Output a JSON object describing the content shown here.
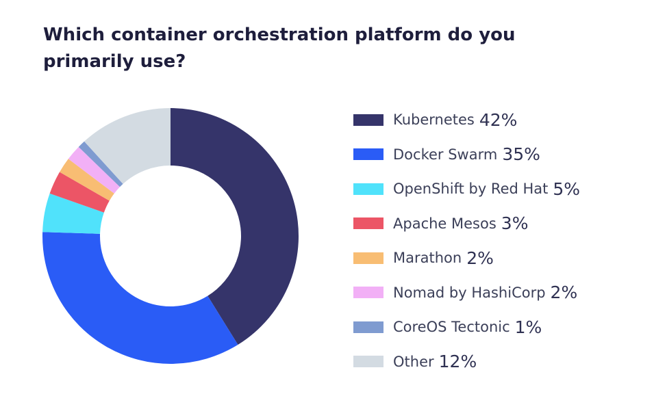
{
  "chart_data": {
    "type": "pie",
    "title": "Which container orchestration platform do you primarily use?",
    "donut": true,
    "start_angle": 180,
    "direction": "clockwise",
    "legend_position": "right",
    "series": [
      {
        "name": "Kubernetes",
        "value": 42,
        "label": "42%",
        "color": "#35346a"
      },
      {
        "name": "Docker Swarm",
        "value": 35,
        "label": "35%",
        "color": "#2a5cf6"
      },
      {
        "name": "OpenShift by Red Hat",
        "value": 5,
        "label": "5%",
        "color": "#50e2fb"
      },
      {
        "name": "Apache Mesos",
        "value": 3,
        "label": "3%",
        "color": "#ec5566"
      },
      {
        "name": "Marathon",
        "value": 2,
        "label": "2%",
        "color": "#f8bd73"
      },
      {
        "name": "Nomad by HashiCorp",
        "value": 2,
        "label": "2%",
        "color": "#f2b0f6"
      },
      {
        "name": "CoreOS Tectonic",
        "value": 1,
        "label": "1%",
        "color": "#7f9bd0"
      },
      {
        "name": "Other",
        "value": 12,
        "label": "12%",
        "color": "#d3dbe2"
      }
    ]
  }
}
